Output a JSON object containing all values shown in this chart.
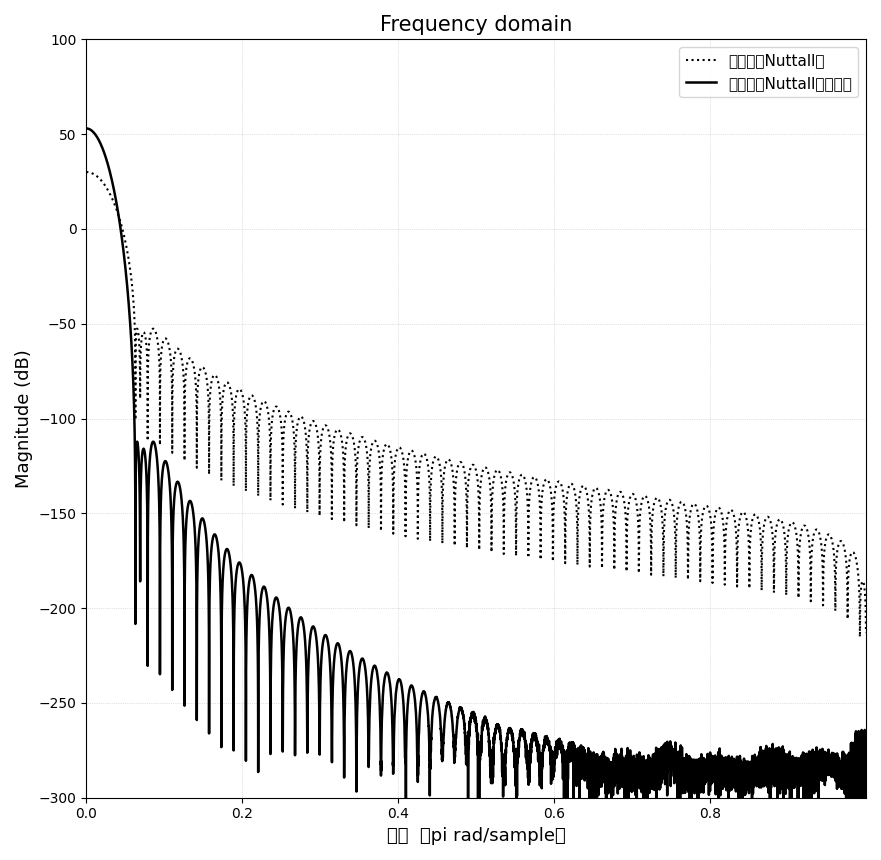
{
  "title": "Frequency domain",
  "xlabel": "频域  （pi rad/sample）",
  "ylabel": "Magnitude (dB)",
  "ylim": [
    -300,
    100
  ],
  "xlim": [
    0,
    1.0
  ],
  "yticks": [
    100,
    50,
    0,
    -50,
    -100,
    -150,
    -200,
    -250,
    -300
  ],
  "xticks": [
    0,
    0.2,
    0.4,
    0.6,
    0.8
  ],
  "legend1": "四项三阶Nuttall窗",
  "legend2": "四项三阶Nuttall自卷积窗",
  "background_color": "#ffffff",
  "N": 128,
  "nfft": 16384,
  "title_fontsize": 15,
  "label_fontsize": 13,
  "peak_dotted_db": 30.0,
  "peak_solid_db": 53.0
}
